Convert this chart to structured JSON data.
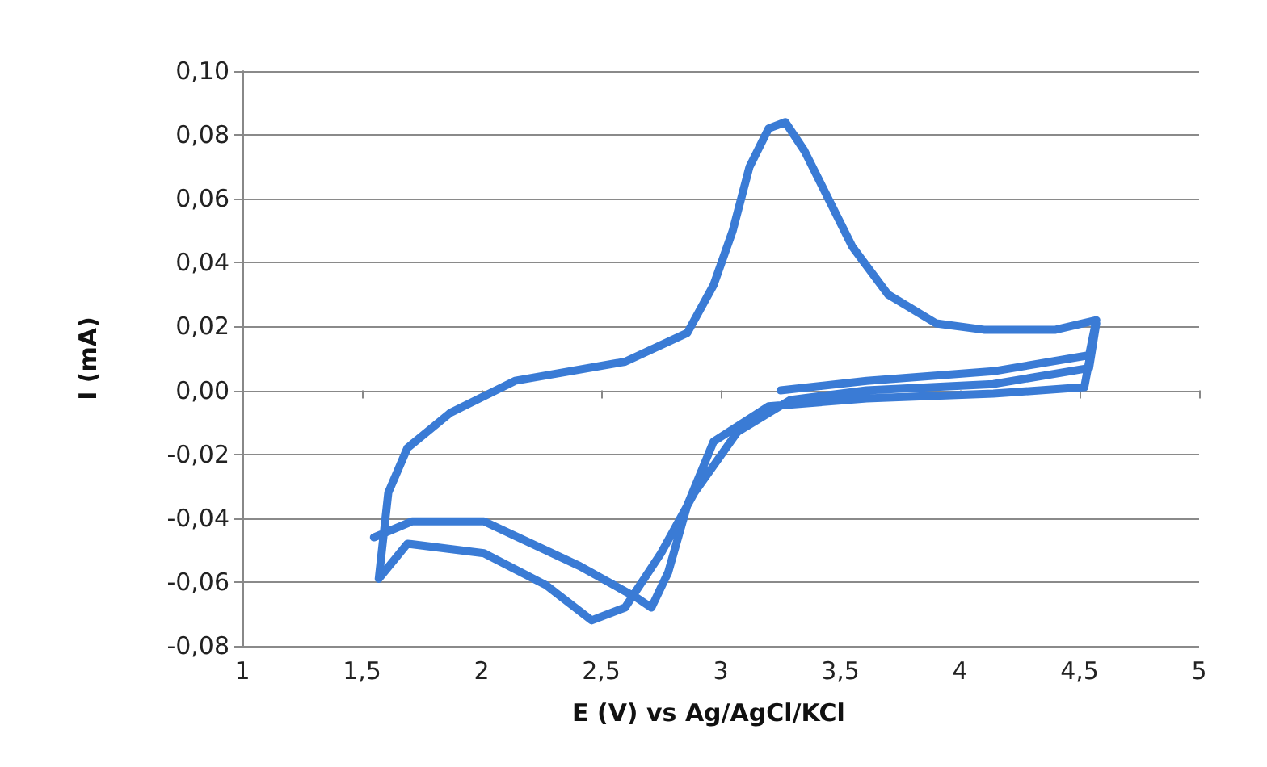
{
  "chart_data": {
    "type": "line",
    "xlabel": "E (V) vs Ag/AgCl/KCl",
    "ylabel": "I (mA)",
    "xlim": [
      1,
      5
    ],
    "xticks": [
      1,
      {
        "value": 1.5,
        "label": "1,5"
      },
      2,
      {
        "value": 2.5,
        "label": "2,5"
      },
      3,
      {
        "value": 3.5,
        "label": "3,5"
      },
      4,
      {
        "value": 4.5,
        "label": "4,5"
      },
      5
    ],
    "ylim": [
      -0.08,
      0.1
    ],
    "yticks": [
      {
        "value": -0.08,
        "label": "-0,08"
      },
      {
        "value": -0.06,
        "label": "-0,06"
      },
      {
        "value": -0.04,
        "label": "-0,04"
      },
      {
        "value": -0.02,
        "label": "-0,02"
      },
      {
        "value": 0,
        "label": "0,00"
      },
      {
        "value": 0.02,
        "label": "0,02"
      },
      {
        "value": 0.04,
        "label": "0,04"
      },
      {
        "value": 0.06,
        "label": "0,06"
      },
      {
        "value": 0.08,
        "label": "0,08"
      },
      {
        "value": 0.1,
        "label": "0,10"
      }
    ],
    "grid": "y",
    "marker": "none",
    "line_style": "solid",
    "series": [
      {
        "color": "#3a7bd5",
        "x": [
          3.25,
          3.61,
          4.14,
          4.54,
          4.57,
          4.4,
          4.1,
          3.9,
          3.7,
          3.55,
          3.45,
          3.35,
          3.27,
          3.2,
          3.12,
          3.05,
          2.97,
          2.86,
          2.6,
          2.14,
          1.87,
          1.69,
          1.61,
          1.57,
          1.69,
          2.01,
          2.27,
          2.46,
          2.6,
          2.75,
          2.89,
          3.07,
          3.29,
          3.61,
          4.14,
          4.54,
          4.57,
          4.52,
          4.14,
          3.61,
          3.2,
          2.97,
          2.86,
          2.78,
          2.71,
          2.65,
          2.41,
          2.01,
          1.71,
          1.55
        ],
        "values": [
          0,
          0.003,
          0.006,
          0.011,
          0.022,
          0.019,
          0.019,
          0.021,
          0.03,
          0.045,
          0.06,
          0.075,
          0.084,
          0.082,
          0.07,
          0.05,
          0.033,
          0.018,
          0.009,
          0.003,
          -0.007,
          -0.018,
          -0.032,
          -0.059,
          -0.048,
          -0.051,
          -0.061,
          -0.072,
          -0.068,
          -0.051,
          -0.032,
          -0.013,
          -0.003,
          0,
          0.002,
          0.007,
          0.021,
          0.001,
          -0.001,
          -0.0025,
          -0.005,
          -0.016,
          -0.036,
          -0.057,
          -0.068,
          -0.065,
          -0.055,
          -0.041,
          -0.041,
          -0.046
        ]
      }
    ]
  }
}
